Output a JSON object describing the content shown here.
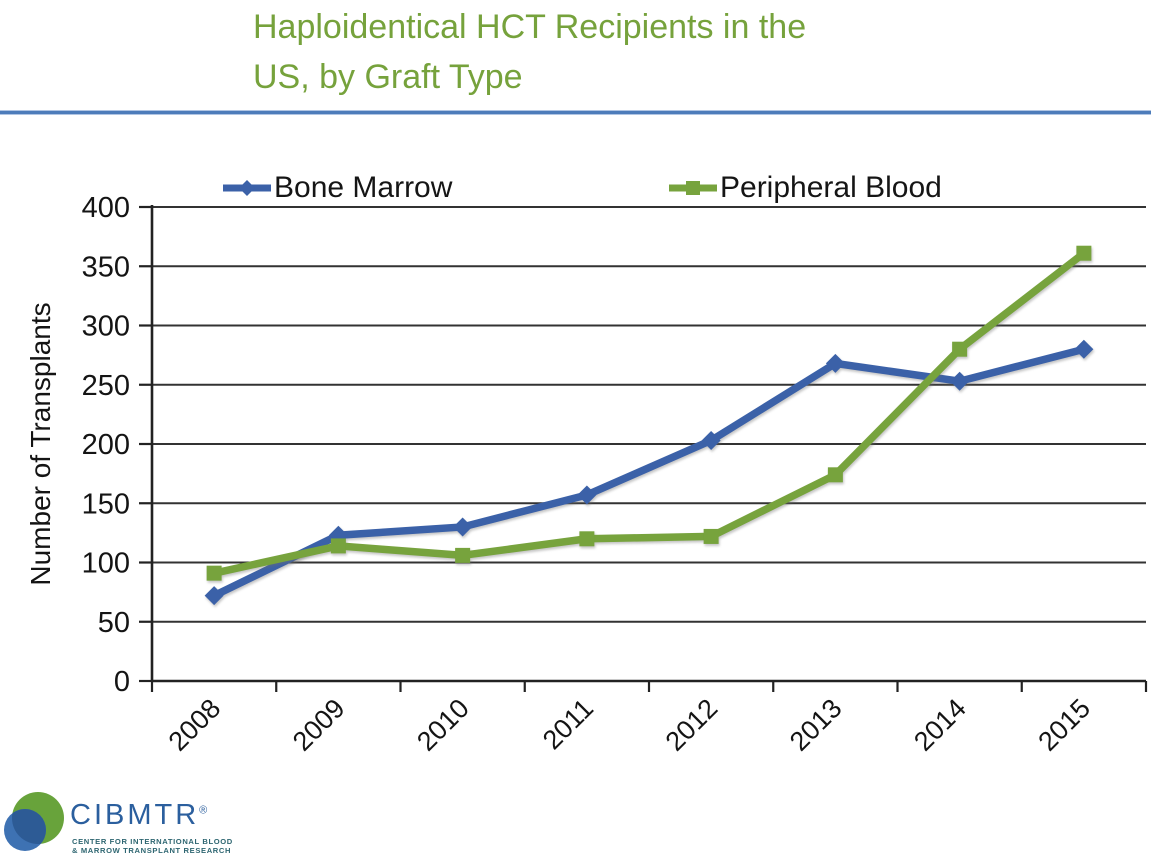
{
  "header": {
    "title_line1": "Haploidentical HCT Recipients in the",
    "title_line2": "US, by Graft Type",
    "title_color": "#76a23c",
    "divider_color": "#4d7cba"
  },
  "chart_data": {
    "type": "line",
    "title": "Haploidentical HCT Recipients in the US, by Graft Type",
    "categories": [
      "2008",
      "2009",
      "2010",
      "2011",
      "2012",
      "2013",
      "2014",
      "2015"
    ],
    "series": [
      {
        "name": "Bone Marrow",
        "color": "#3b61a8",
        "marker": "diamond",
        "values": [
          72,
          123,
          130,
          157,
          203,
          268,
          253,
          280
        ]
      },
      {
        "name": "Peripheral Blood",
        "color": "#77a33d",
        "marker": "square",
        "values": [
          91,
          114,
          106,
          120,
          122,
          174,
          280,
          361
        ]
      }
    ],
    "xlabel": "",
    "ylabel": "Number of Transplants",
    "ylim": [
      0,
      400
    ],
    "ytick_step": 50,
    "grid": true,
    "legend_position": "top",
    "axis_color": "#222222",
    "grid_color": "#333333"
  },
  "footer_logo": {
    "brand": "CIBMTR",
    "registered_mark": "®",
    "tagline_line1": "CENTER FOR INTERNATIONAL BLOOD",
    "tagline_line2": "& MARROW TRANSPLANT RESEARCH",
    "brand_color": "#2b5f9e",
    "circle_green": "#68a33b",
    "circle_blue": "#3e72b3",
    "circle_overlap": "#2d5b95"
  }
}
